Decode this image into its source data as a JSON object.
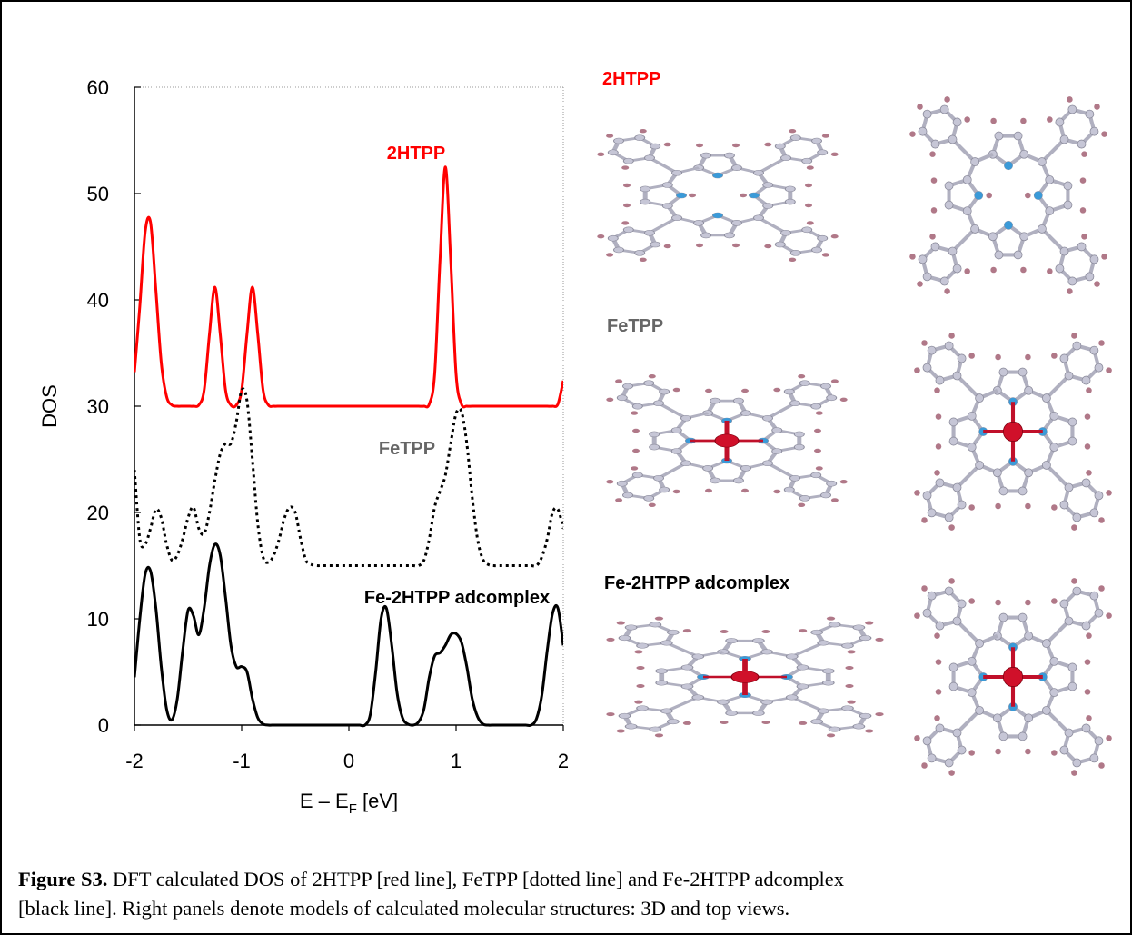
{
  "chart_data": {
    "type": "line",
    "ylabel": "DOS",
    "xlabel": {
      "main": "E – E",
      "sub": "F",
      "unit": " [eV]"
    },
    "xlim": [
      -2,
      2
    ],
    "xticks": [
      -2,
      -1,
      0,
      1,
      2
    ],
    "ylim": [
      0,
      60
    ],
    "yticks": [
      0,
      10,
      20,
      30,
      40,
      50,
      60
    ],
    "x": [
      -2,
      -1.95,
      -1.9,
      -1.85,
      -1.8,
      -1.75,
      -1.7,
      -1.65,
      -1.6,
      -1.55,
      -1.5,
      -1.45,
      -1.4,
      -1.35,
      -1.3,
      -1.25,
      -1.2,
      -1.15,
      -1.1,
      -1.05,
      -1,
      -0.95,
      -0.9,
      -0.85,
      -0.8,
      -0.75,
      -0.7,
      -0.65,
      -0.6,
      -0.55,
      -0.5,
      -0.45,
      -0.4,
      -0.35,
      -0.3,
      -0.25,
      -0.2,
      -0.15,
      -0.1,
      -0.05,
      0,
      0.05,
      0.1,
      0.15,
      0.2,
      0.25,
      0.3,
      0.35,
      0.4,
      0.45,
      0.5,
      0.55,
      0.6,
      0.65,
      0.7,
      0.75,
      0.8,
      0.85,
      0.9,
      0.95,
      1,
      1.05,
      1.1,
      1.15,
      1.2,
      1.25,
      1.3,
      1.35,
      1.4,
      1.45,
      1.5,
      1.55,
      1.6,
      1.65,
      1.7,
      1.75,
      1.8,
      1.85,
      1.9,
      1.95,
      2
    ],
    "series": [
      {
        "name": "2HTPP",
        "color": "#ff0000",
        "label_color": "#ff0000",
        "line_style": "solid",
        "values": [
          33.2,
          39.4,
          46.4,
          47.3,
          40.9,
          34.1,
          30.9,
          30.1,
          30,
          30,
          30,
          30,
          30.1,
          31.5,
          36.8,
          41.2,
          36.8,
          31.5,
          30.1,
          30.1,
          31.5,
          36.8,
          41.2,
          36.8,
          31.5,
          30.1,
          30,
          30,
          30,
          30,
          30,
          30,
          30,
          30,
          30,
          30,
          30,
          30,
          30,
          30,
          30,
          30,
          30,
          30,
          30,
          30,
          30,
          30,
          30,
          30,
          30,
          30,
          30,
          30,
          30,
          30.2,
          33,
          43.7,
          52.5,
          43.7,
          33,
          30.2,
          30,
          30,
          30,
          30,
          30,
          30,
          30,
          30,
          30,
          30,
          30,
          30,
          30,
          30,
          30,
          30,
          30,
          30.2,
          32.4
        ]
      },
      {
        "name": "FeTPP",
        "color": "#000000",
        "label_color": "#666666",
        "line_style": "dotted",
        "values": [
          24,
          17.5,
          17,
          18.5,
          20.3,
          19.5,
          17,
          15.5,
          16,
          17.5,
          19.5,
          20.5,
          18.5,
          18,
          20,
          23,
          25.5,
          26.5,
          26.5,
          28.5,
          31.5,
          30.5,
          25,
          19,
          15.8,
          15.3,
          16,
          17.5,
          19.5,
          20.5,
          20,
          17.5,
          15.5,
          15.1,
          15,
          15,
          15,
          15,
          15,
          15,
          15,
          15,
          15,
          15,
          15,
          15,
          15,
          15,
          15,
          15,
          15,
          15,
          15,
          15,
          15.5,
          17.5,
          20.5,
          22,
          23.5,
          26.5,
          29.3,
          29.5,
          26.5,
          21.5,
          17.5,
          15.6,
          15.1,
          15,
          15,
          15,
          15,
          15,
          15,
          15,
          15,
          15,
          15.8,
          17.5,
          20,
          20.3,
          18.5
        ]
      },
      {
        "name": "Fe-2HTPP adcomplex",
        "color": "#000000",
        "label_color": "#000000",
        "line_style": "solid",
        "values": [
          4.5,
          10,
          14.2,
          14.5,
          11,
          5.5,
          1.5,
          0.5,
          2.5,
          7,
          10.8,
          10.3,
          8.5,
          11,
          15,
          17,
          16,
          12,
          7.5,
          5.5,
          5.5,
          5,
          2.5,
          0.7,
          0.1,
          0,
          0,
          0,
          0,
          0,
          0,
          0,
          0,
          0,
          0,
          0,
          0,
          0,
          0,
          0,
          0,
          0,
          0,
          0,
          1,
          5,
          10,
          11,
          7.5,
          3,
          0.7,
          0.1,
          0,
          0.3,
          1.5,
          4.5,
          6.5,
          6.8,
          7.5,
          8.5,
          8.6,
          7.8,
          5.5,
          2.5,
          0.8,
          0.1,
          0,
          0,
          0,
          0,
          0,
          0,
          0,
          0,
          0,
          0.6,
          2.8,
          7,
          10.5,
          11,
          7.5
        ]
      }
    ]
  },
  "panels": [
    {
      "label": "2HTPP",
      "color": "#ff0000"
    },
    {
      "label": "FeTPP",
      "color": "#666666"
    },
    {
      "label": "Fe-2HTPP adcomplex",
      "color": "#000000"
    }
  ],
  "caption": {
    "label": "Figure S3.",
    "lines": [
      " DFT calculated DOS of 2HTPP [red line], FeTPP [dotted line] and Fe-2HTPP adcomplex",
      "[black line]. Right panels denote models of calculated molecular structures: 3D and top views."
    ]
  }
}
